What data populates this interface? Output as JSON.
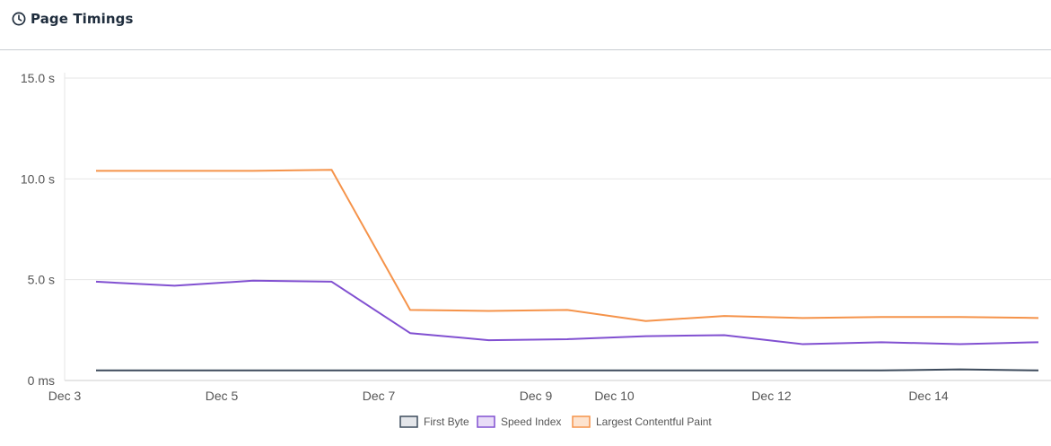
{
  "header": {
    "title": "Page Timings",
    "icon": "clock-icon"
  },
  "chart_data": {
    "type": "line",
    "title": "Page Timings",
    "xlabel": "",
    "ylabel": "",
    "x_tick_labels": [
      "Dec 3",
      "Dec 5",
      "Dec 7",
      "Dec 9",
      "Dec 10",
      "Dec 12",
      "Dec 14"
    ],
    "y_tick_labels": [
      "0 ms",
      "5.0 s",
      "10.0 s",
      "15.0 s"
    ],
    "ylim": [
      0,
      15
    ],
    "x": [
      "Dec 3.4",
      "Dec 4.4",
      "Dec 5.4",
      "Dec 6.4",
      "Dec 7.4",
      "Dec 8.4",
      "Dec 9.4",
      "Dec 10.4",
      "Dec 11.4",
      "Dec 12.4",
      "Dec 13.4",
      "Dec 14.4",
      "Dec 15.4"
    ],
    "x_numeric": [
      3.4,
      4.4,
      5.4,
      6.4,
      7.4,
      8.4,
      9.4,
      10.4,
      11.4,
      12.4,
      13.4,
      14.4,
      15.4
    ],
    "x_range": [
      3,
      15.4
    ],
    "series": [
      {
        "name": "First Byte",
        "color": "#3d4b5c",
        "values": [
          0.5,
          0.5,
          0.5,
          0.5,
          0.5,
          0.5,
          0.5,
          0.5,
          0.5,
          0.5,
          0.5,
          0.55,
          0.5
        ]
      },
      {
        "name": "Speed Index",
        "color": "#8150d1",
        "values": [
          4.9,
          4.7,
          4.95,
          4.9,
          2.35,
          2.0,
          2.05,
          2.2,
          2.25,
          1.8,
          1.9,
          1.8,
          1.9
        ]
      },
      {
        "name": "Largest Contentful Paint",
        "color": "#f5934a",
        "values": [
          10.4,
          10.4,
          10.4,
          10.45,
          3.5,
          3.45,
          3.5,
          2.95,
          3.2,
          3.1,
          3.15,
          3.15,
          3.1
        ]
      }
    ],
    "legend_position": "bottom-center",
    "grid": true
  }
}
